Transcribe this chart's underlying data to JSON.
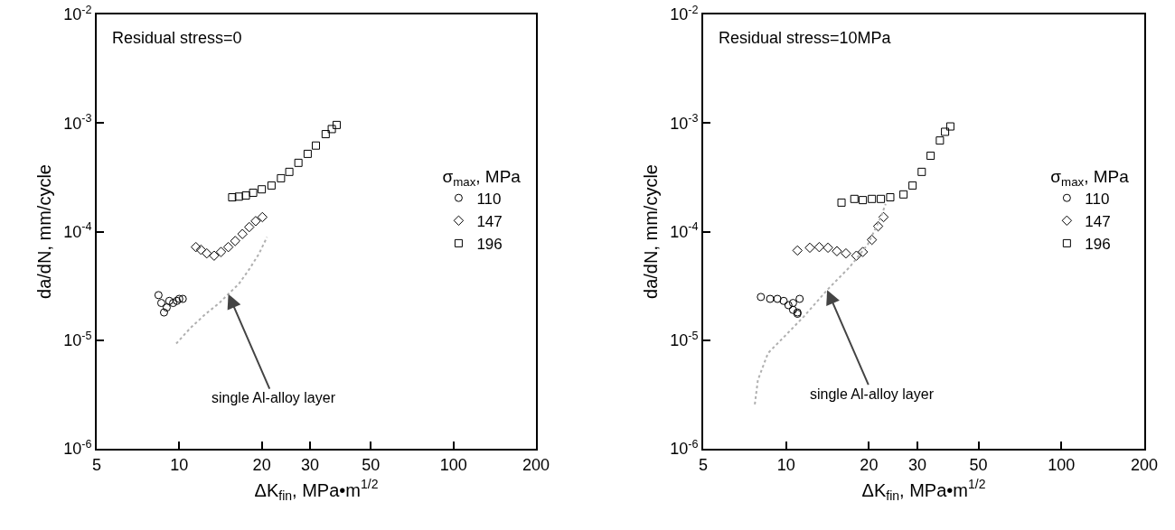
{
  "chart_data": [
    {
      "type": "scatter",
      "xlabel": "ΔK$_{fin}$, MPa•m$^{1/2}$",
      "ylabel": "da/dN, mm/cycle",
      "legend_title": "σ$_{max}$, MPa",
      "log": "xy",
      "legend": "right",
      "grid": false,
      "xlim": [
        5,
        200
      ],
      "xticks": [
        5,
        10,
        20,
        30,
        50,
        100,
        200
      ],
      "ylim": [
        1e-06,
        0.01
      ],
      "yticks": [
        {
          "value": 1e-06,
          "label": "10$^{-6}$"
        },
        {
          "value": 1e-05,
          "label": "10$^{-5}$"
        },
        {
          "value": 0.0001,
          "label": "10$^{-4}$"
        },
        {
          "value": 0.001,
          "label": "10$^{-3}$"
        },
        {
          "value": 0.01,
          "label": "10$^{-2}$"
        }
      ],
      "annotations": [
        "Residual stress=0",
        {
          "text": "single Al-alloy layer",
          "x": 15.1,
          "y": 2.66e-05
        }
      ],
      "series": [
        {
          "name": "110",
          "color": "#000000",
          "marker": "circle",
          "x": [
            8.4,
            8.6,
            8.8,
            9.0,
            9.2,
            9.5,
            9.8,
            10.0,
            10.3
          ],
          "values": [
            2.6e-05,
            2.2e-05,
            1.8e-05,
            2e-05,
            2.3e-05,
            2.2e-05,
            2.3e-05,
            2.4e-05,
            2.4e-05
          ]
        },
        {
          "name": "147",
          "color": "#000000",
          "marker": "diamond",
          "x": [
            11.5,
            12.0,
            12.6,
            13.4,
            14.2,
            15.1,
            16.0,
            17.0,
            18.0,
            19.0,
            20.1
          ],
          "values": [
            7.2e-05,
            6.8e-05,
            6.3e-05,
            6e-05,
            6.5e-05,
            7.2e-05,
            8.2e-05,
            9.5e-05,
            0.00011,
            0.000125,
            0.000136
          ]
        },
        {
          "name": "196",
          "color": "#000000",
          "marker": "square",
          "x": [
            15.6,
            16.5,
            17.5,
            18.6,
            20.0,
            21.7,
            23.5,
            25.2,
            27.2,
            29.4,
            31.5,
            34.2,
            36.0,
            37.5
          ],
          "values": [
            0.000207,
            0.00021,
            0.000215,
            0.000228,
            0.000245,
            0.000266,
            0.00031,
            0.000355,
            0.00043,
            0.00052,
            0.00062,
            0.00079,
            0.00088,
            0.00096
          ]
        },
        {
          "type": "line",
          "color": "#b0b0b0",
          "line_style": "dotted",
          "x": [
            9.75,
            11.0,
            12.5,
            14.0,
            15.1,
            16.5,
            18.0,
            19.5,
            20.9
          ],
          "values": [
            9.3e-06,
            1.3e-05,
            1.75e-05,
            2.2e-05,
            2.66e-05,
            3.3e-05,
            4.5e-05,
            6.2e-05,
            8.9e-05
          ]
        }
      ]
    },
    {
      "type": "scatter",
      "xlabel": "ΔK$_{fin}$, MPa•m$^{1/2}$",
      "ylabel": "da/dN, mm/cycle",
      "legend_title": "σ$_{max}$, MPa",
      "log": "xy",
      "legend": "right",
      "grid": false,
      "xlim": [
        5,
        200
      ],
      "xticks": [
        5,
        10,
        20,
        30,
        50,
        100,
        200
      ],
      "ylim": [
        1e-06,
        0.01
      ],
      "yticks": [
        {
          "value": 1e-06,
          "label": "10$^{-6}$"
        },
        {
          "value": 1e-05,
          "label": "10$^{-5}$"
        },
        {
          "value": 0.0001,
          "label": "10$^{-4}$"
        },
        {
          "value": 0.001,
          "label": "10$^{-3}$"
        },
        {
          "value": 0.01,
          "label": "10$^{-2}$"
        }
      ],
      "annotations": [
        "Residual stress=10MPa",
        {
          "text": "single Al-alloy layer",
          "x": 14.1,
          "y": 2.9e-05
        }
      ],
      "series": [
        {
          "name": "110",
          "color": "#000000",
          "marker": "circle",
          "x": [
            8.1,
            8.75,
            9.3,
            9.8,
            10.2,
            10.6,
            11.2,
            11.0,
            10.6,
            11.0
          ],
          "values": [
            2.5e-05,
            2.4e-05,
            2.4e-05,
            2.3e-05,
            2.1e-05,
            2.2e-05,
            2.4e-05,
            1.8e-05,
            1.9e-05,
            1.75e-05
          ]
        },
        {
          "name": "147",
          "color": "#000000",
          "marker": "diamond",
          "x": [
            11.0,
            12.2,
            13.2,
            14.2,
            15.3,
            16.5,
            18.0,
            19.0,
            20.5,
            21.6,
            22.6
          ],
          "values": [
            6.7e-05,
            7.1e-05,
            7.2e-05,
            7.1e-05,
            6.6e-05,
            6.3e-05,
            6e-05,
            6.5e-05,
            8.4e-05,
            0.000112,
            0.000136
          ]
        },
        {
          "name": "196",
          "color": "#000000",
          "marker": "square",
          "x": [
            15.9,
            17.7,
            19.0,
            20.5,
            22.1,
            23.9,
            26.7,
            28.8,
            31.1,
            33.5,
            36.2,
            37.8,
            39.5
          ],
          "values": [
            0.000185,
            0.0002,
            0.000195,
            0.0002,
            0.0002,
            0.000207,
            0.00022,
            0.000266,
            0.000355,
            0.0005,
            0.00069,
            0.00083,
            0.00093
          ]
        },
        {
          "type": "line",
          "color": "#b0b0b0",
          "line_style": "dotted",
          "x": [
            7.7,
            7.9,
            8.6,
            10.0,
            11.6,
            14.1,
            17.0,
            19.8,
            22.1,
            23.0
          ],
          "values": [
            2.56e-06,
            4.3e-06,
            7.6e-06,
            1.12e-05,
            1.65e-05,
            2.9e-05,
            4.7e-05,
            7.6e-05,
            0.000136,
            0.00018
          ]
        }
      ]
    }
  ]
}
